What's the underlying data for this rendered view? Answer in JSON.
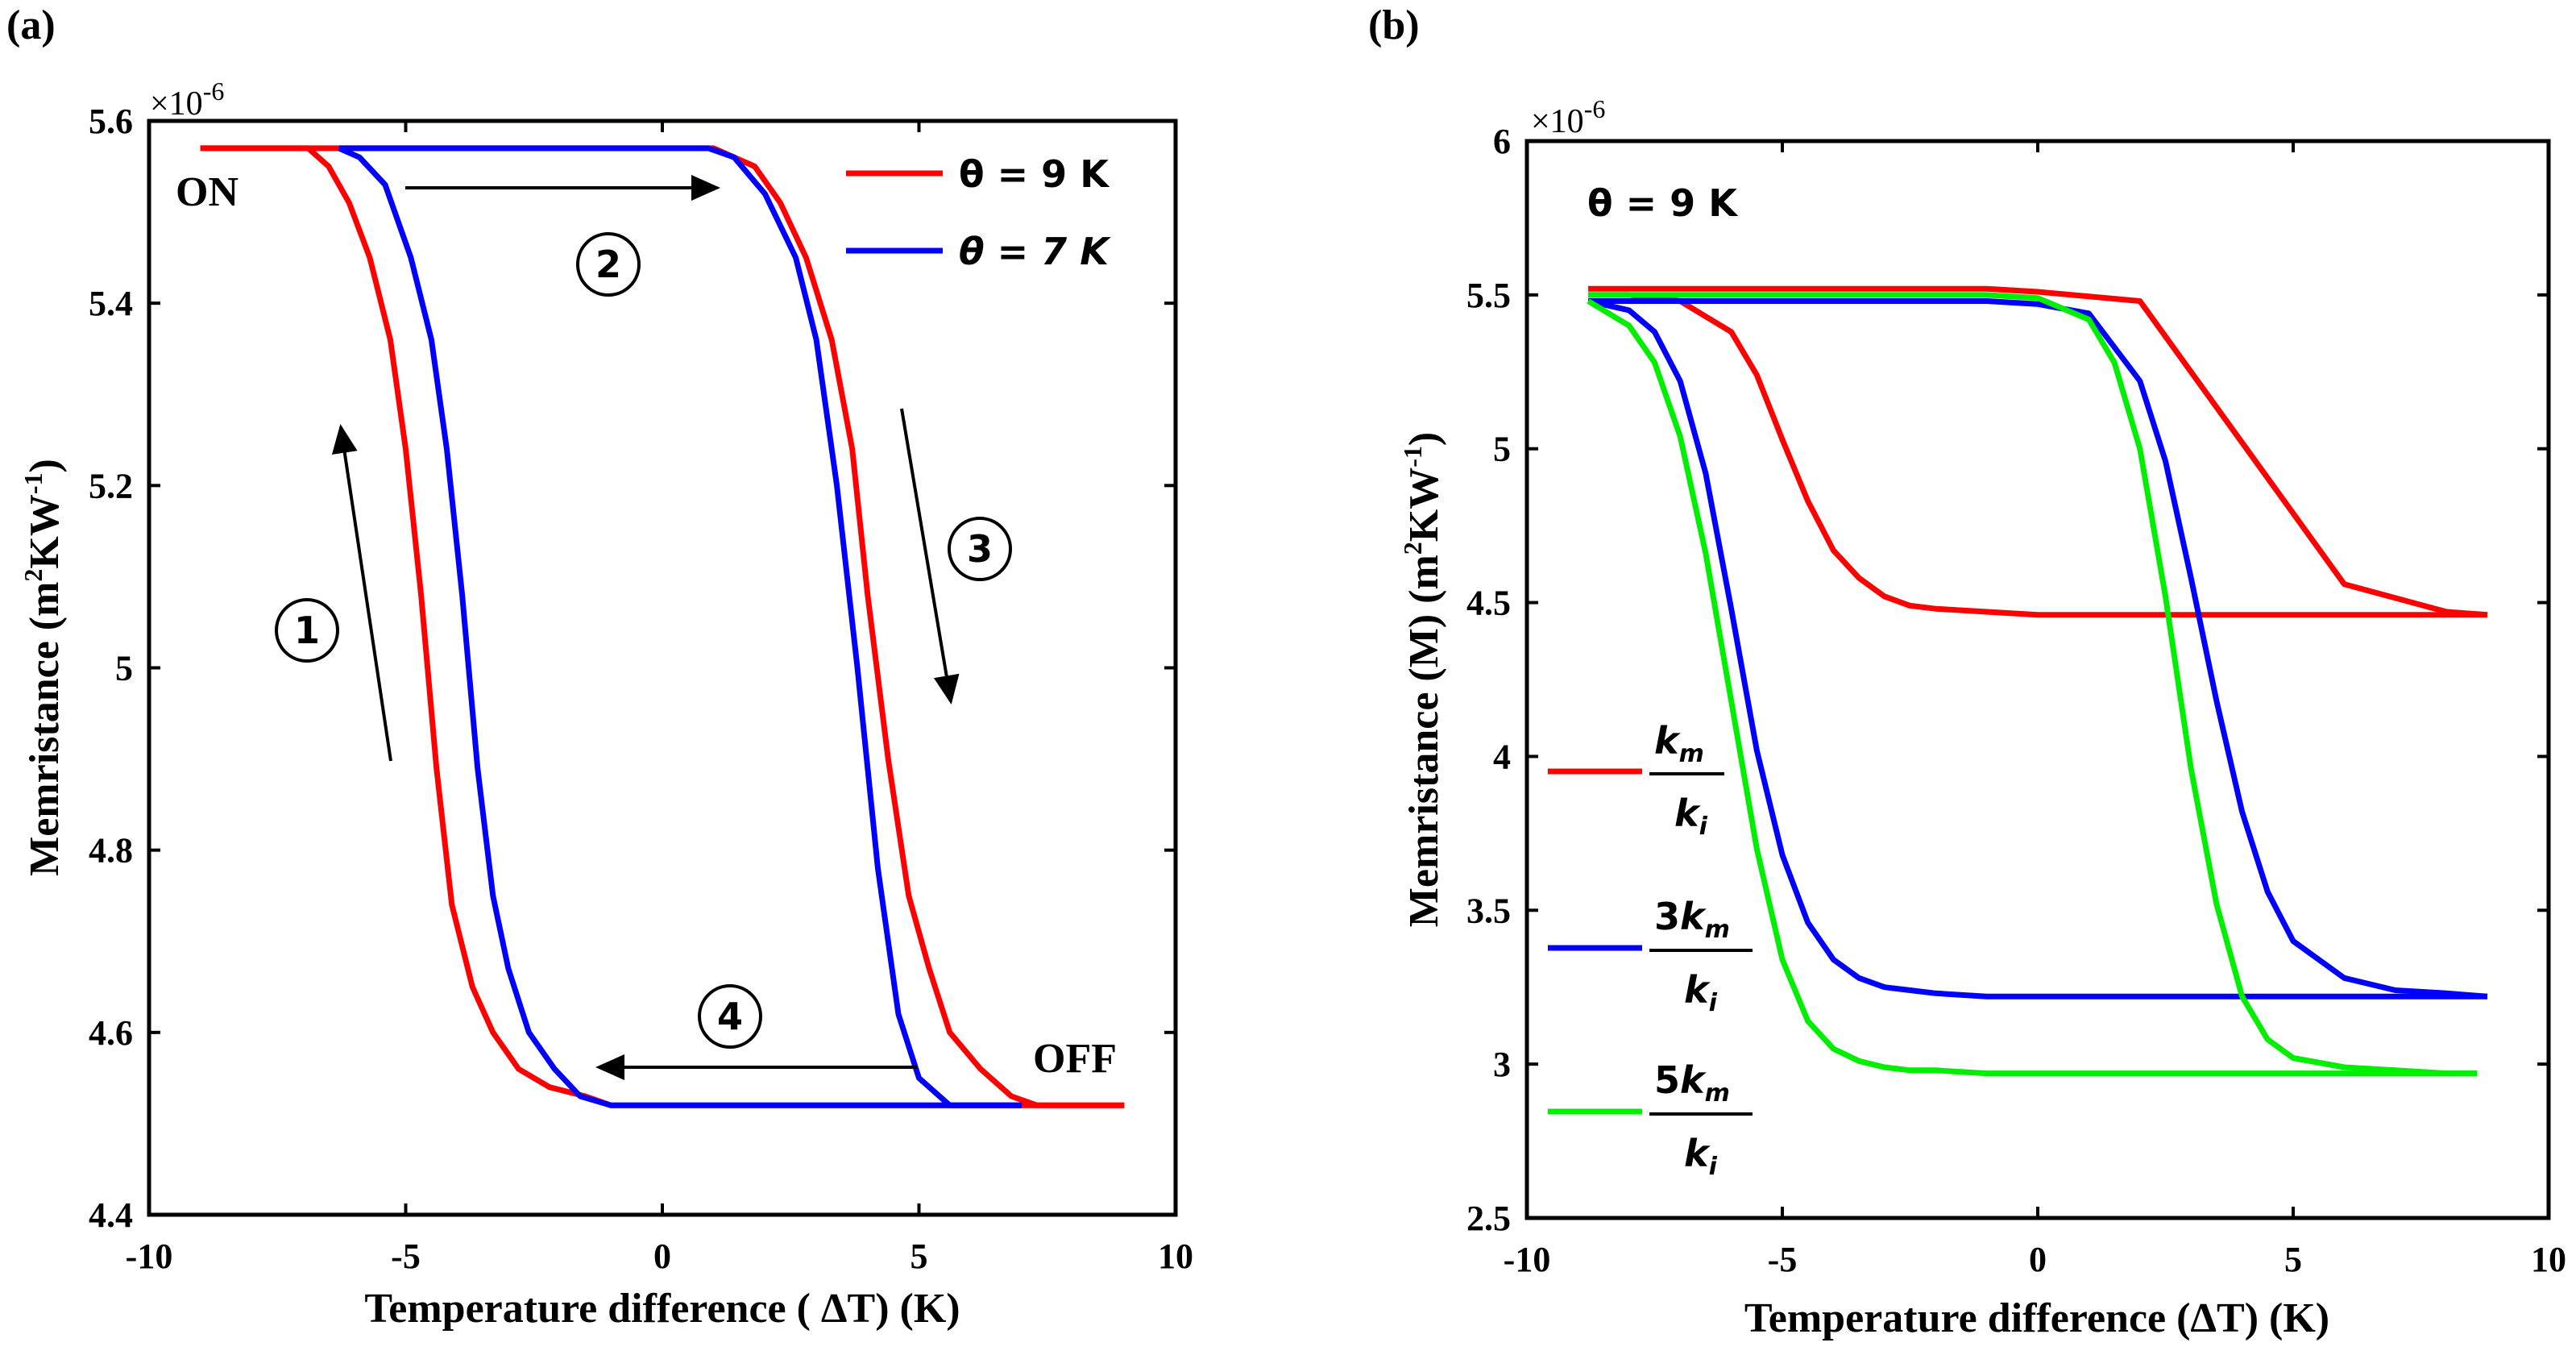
{
  "chart_data": [
    {
      "panel_label": "(a)",
      "type": "line",
      "xlabel": "Temperature difference ( ΔT) (K)",
      "ylabel": "Memristance (m",
      "ylabel_unit_1": "2",
      "ylabel_mid": "KW",
      "ylabel_unit_2": "-1",
      "ylabel_end": ")",
      "exponent_label": "×10",
      "exponent_power": "-6",
      "xlim": [
        -10,
        10
      ],
      "ylim": [
        4.4,
        5.6
      ],
      "xticks": [
        -10,
        -5,
        0,
        5,
        10
      ],
      "xtick_labels": [
        "-10",
        "-5",
        "0",
        "5",
        "10"
      ],
      "yticks": [
        4.4,
        4.6,
        4.8,
        5.0,
        5.2,
        5.4,
        5.6
      ],
      "ytick_labels": [
        "4.4",
        "4.6",
        "4.8",
        "5",
        "5.2",
        "5.4",
        "5.6"
      ],
      "legend_position": "top-right",
      "annotations": {
        "on": "ON",
        "off": "OFF"
      },
      "steps": [
        "1",
        "2",
        "3",
        "4"
      ],
      "series": [
        {
          "name": "θ = 9 K",
          "color": "#ff0000",
          "x": [
            -9,
            -6.9,
            -6.5,
            -6.1,
            -5.7,
            -5.3,
            -5.0,
            -4.7,
            -4.4,
            -4.1,
            -3.7,
            -3.3,
            -2.8,
            -2.2,
            -1.5,
            -1,
            0,
            1,
            1.4,
            1.8,
            2.3,
            2.8,
            3.3,
            3.7,
            4.0,
            4.4,
            4.8,
            5.2,
            5.6,
            6.2,
            6.8,
            7.3,
            7.6,
            9
          ],
          "y": [
            5.57,
            5.57,
            5.55,
            5.51,
            5.45,
            5.36,
            5.24,
            5.08,
            4.89,
            4.74,
            4.65,
            4.6,
            4.56,
            4.54,
            4.53,
            4.52,
            4.52,
            4.52,
            4.52,
            4.52,
            4.52,
            4.52,
            4.52,
            4.52,
            4.52,
            4.52,
            4.52,
            4.52,
            4.52,
            4.52,
            4.52,
            4.52,
            4.52,
            4.52
          ],
          "y_return": [
            5.57,
            5.57,
            5.57,
            5.57,
            5.57,
            5.57,
            5.57,
            5.57,
            5.57,
            5.57,
            5.57,
            5.57,
            5.57,
            5.57,
            5.57,
            5.57,
            5.57,
            5.57,
            5.56,
            5.55,
            5.51,
            5.45,
            5.36,
            5.24,
            5.08,
            4.9,
            4.75,
            4.67,
            4.6,
            4.56,
            4.53,
            4.52,
            4.52,
            4.52
          ]
        },
        {
          "name": "θ = 7 K",
          "color": "#0000ff",
          "x": [
            -6.3,
            -5.9,
            -5.4,
            -4.9,
            -4.5,
            -4.2,
            -3.9,
            -3.6,
            -3.3,
            -3.0,
            -2.6,
            -2.1,
            -1.6,
            -1.0,
            0,
            0.9,
            1.4,
            2.0,
            2.6,
            3.0,
            3.4,
            3.8,
            4.2,
            4.6,
            5.0,
            5.6,
            7.0
          ],
          "y": [
            5.57,
            5.56,
            5.53,
            5.45,
            5.36,
            5.24,
            5.08,
            4.89,
            4.75,
            4.67,
            4.6,
            4.56,
            4.53,
            4.52,
            4.52,
            4.52,
            4.52,
            4.52,
            4.52,
            4.52,
            4.52,
            4.52,
            4.52,
            4.52,
            4.52,
            4.52,
            4.52
          ],
          "y_return": [
            5.57,
            5.57,
            5.57,
            5.57,
            5.57,
            5.57,
            5.57,
            5.57,
            5.57,
            5.57,
            5.57,
            5.57,
            5.57,
            5.57,
            5.57,
            5.57,
            5.56,
            5.52,
            5.45,
            5.36,
            5.2,
            5.0,
            4.78,
            4.62,
            4.55,
            4.52,
            4.52
          ]
        }
      ]
    },
    {
      "panel_label": "(b)",
      "type": "line",
      "xlabel": "Temperature difference (ΔT) (K)",
      "ylabel": "Memristance (M) (m",
      "ylabel_unit_1": "2",
      "ylabel_mid": "KW",
      "ylabel_unit_2": "-1",
      "ylabel_end": ")",
      "exponent_label": "×10",
      "exponent_power": "-6",
      "title_annotation": "θ = 9 K",
      "xlim": [
        -10,
        10
      ],
      "ylim": [
        2.5,
        6
      ],
      "xticks": [
        -10,
        -5,
        0,
        5,
        10
      ],
      "xtick_labels": [
        "-10",
        "-5",
        "0",
        "5",
        "10"
      ],
      "yticks": [
        2.5,
        3,
        3.5,
        4,
        4.5,
        5,
        5.5,
        6
      ],
      "ytick_labels": [
        "2.5",
        "3",
        "3.5",
        "4",
        "4.5",
        "5",
        "5.5",
        "6"
      ],
      "legend_position": "left-bottom",
      "series": [
        {
          "name": "k_m / k_i",
          "legend_num": "k",
          "legend_num_sub": "m",
          "legend_coef": "",
          "legend_den": "k",
          "legend_den_sub": "i",
          "color": "#ff0000",
          "x": [
            -8.8,
            -8,
            -7,
            -6,
            -5.5,
            -5,
            -4.5,
            -4,
            -3.5,
            -3,
            -2.5,
            -2,
            -1,
            0,
            2,
            4,
            6,
            8,
            8.8
          ],
          "y_forward": [
            5.5,
            5.5,
            5.48,
            5.38,
            5.24,
            5.03,
            4.83,
            4.67,
            4.58,
            4.52,
            4.49,
            4.48,
            4.47,
            4.46,
            4.46,
            4.46,
            4.46,
            4.46,
            4.46
          ],
          "y_return": [
            5.52,
            5.52,
            5.52,
            5.52,
            5.52,
            5.52,
            5.52,
            5.52,
            5.52,
            5.52,
            5.52,
            5.52,
            5.52,
            5.51,
            5.48,
            5.02,
            4.56,
            4.47,
            4.46
          ]
        },
        {
          "name": "3k_m / k_i",
          "legend_num": "k",
          "legend_num_sub": "m",
          "legend_coef": "3",
          "legend_den": "k",
          "legend_den_sub": "i",
          "color": "#0000ff",
          "x": [
            -8.8,
            -8,
            -7.5,
            -7,
            -6.5,
            -6,
            -5.5,
            -5,
            -4.5,
            -4,
            -3.5,
            -3,
            -2.5,
            -2,
            -1,
            0,
            1,
            2,
            2.5,
            3,
            3.5,
            4,
            4.5,
            5,
            6,
            7,
            8,
            8.8
          ],
          "y_forward": [
            5.48,
            5.45,
            5.38,
            5.22,
            4.92,
            4.48,
            4.02,
            3.68,
            3.46,
            3.34,
            3.28,
            3.25,
            3.24,
            3.23,
            3.22,
            3.22,
            3.22,
            3.22,
            3.22,
            3.22,
            3.22,
            3.22,
            3.22,
            3.22,
            3.22,
            3.22,
            3.22,
            3.22
          ],
          "y_return": [
            5.48,
            5.48,
            5.48,
            5.48,
            5.48,
            5.48,
            5.48,
            5.48,
            5.48,
            5.48,
            5.48,
            5.48,
            5.48,
            5.48,
            5.48,
            5.47,
            5.44,
            5.22,
            4.96,
            4.58,
            4.18,
            3.82,
            3.56,
            3.4,
            3.28,
            3.24,
            3.23,
            3.22
          ]
        },
        {
          "name": "5k_m / k_i",
          "legend_num": "k",
          "legend_num_sub": "m",
          "legend_coef": "5",
          "legend_den": "k",
          "legend_den_sub": "i",
          "color": "#00ee00",
          "x": [
            -8.8,
            -8,
            -7.5,
            -7,
            -6.5,
            -6,
            -5.5,
            -5,
            -4.5,
            -4,
            -3.5,
            -3,
            -2.5,
            -2,
            -1,
            0,
            1,
            1.5,
            2,
            2.5,
            3,
            3.5,
            4,
            4.5,
            5,
            6,
            7,
            8,
            8.6
          ],
          "y_forward": [
            5.48,
            5.4,
            5.28,
            5.04,
            4.66,
            4.18,
            3.7,
            3.34,
            3.14,
            3.05,
            3.01,
            2.99,
            2.98,
            2.98,
            2.97,
            2.97,
            2.97,
            2.97,
            2.97,
            2.97,
            2.97,
            2.97,
            2.97,
            2.97,
            2.97,
            2.97,
            2.97,
            2.97,
            2.97
          ],
          "y_return": [
            5.5,
            5.5,
            5.5,
            5.5,
            5.5,
            5.5,
            5.5,
            5.5,
            5.5,
            5.5,
            5.5,
            5.5,
            5.5,
            5.5,
            5.5,
            5.49,
            5.42,
            5.28,
            5.0,
            4.52,
            3.96,
            3.52,
            3.22,
            3.08,
            3.02,
            2.99,
            2.98,
            2.97,
            2.97
          ]
        }
      ]
    }
  ]
}
